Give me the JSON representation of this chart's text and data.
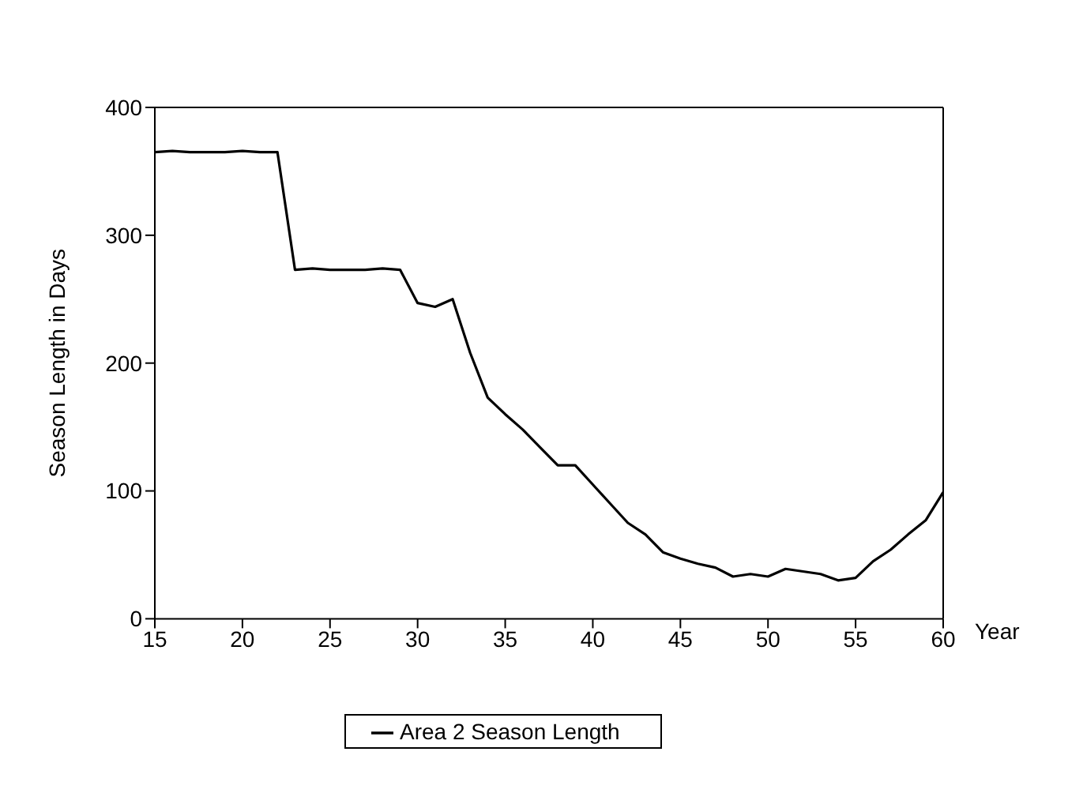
{
  "chart_data": {
    "type": "line",
    "xlabel": "Year",
    "ylabel": "Season Length in Days",
    "x": [
      15,
      16,
      17,
      18,
      19,
      20,
      21,
      22,
      23,
      24,
      25,
      26,
      27,
      28,
      29,
      30,
      31,
      32,
      33,
      34,
      35,
      36,
      37,
      38,
      39,
      40,
      41,
      42,
      43,
      44,
      45,
      46,
      47,
      48,
      49,
      50,
      51,
      52,
      53,
      54,
      55,
      56,
      57,
      58,
      59,
      60
    ],
    "series": [
      {
        "name": "Area 2 Season Length",
        "color": "#000000",
        "values": [
          365,
          366,
          365,
          365,
          365,
          366,
          365,
          365,
          273,
          274,
          273,
          273,
          273,
          274,
          273,
          247,
          244,
          250,
          208,
          173,
          160,
          148,
          134,
          120,
          120,
          105,
          90,
          75,
          66,
          52,
          47,
          43,
          40,
          33,
          35,
          33,
          39,
          37,
          35,
          30,
          32,
          45,
          54,
          66,
          77,
          99
        ]
      }
    ],
    "xlim": [
      15,
      60
    ],
    "xticks": [
      15,
      20,
      25,
      30,
      35,
      40,
      45,
      50,
      55,
      60
    ],
    "ylim": [
      0,
      400
    ],
    "yticks": [
      0,
      100,
      200,
      300,
      400
    ],
    "legend": "bottom",
    "grid": false,
    "marker": "none",
    "line_style": "solid"
  }
}
